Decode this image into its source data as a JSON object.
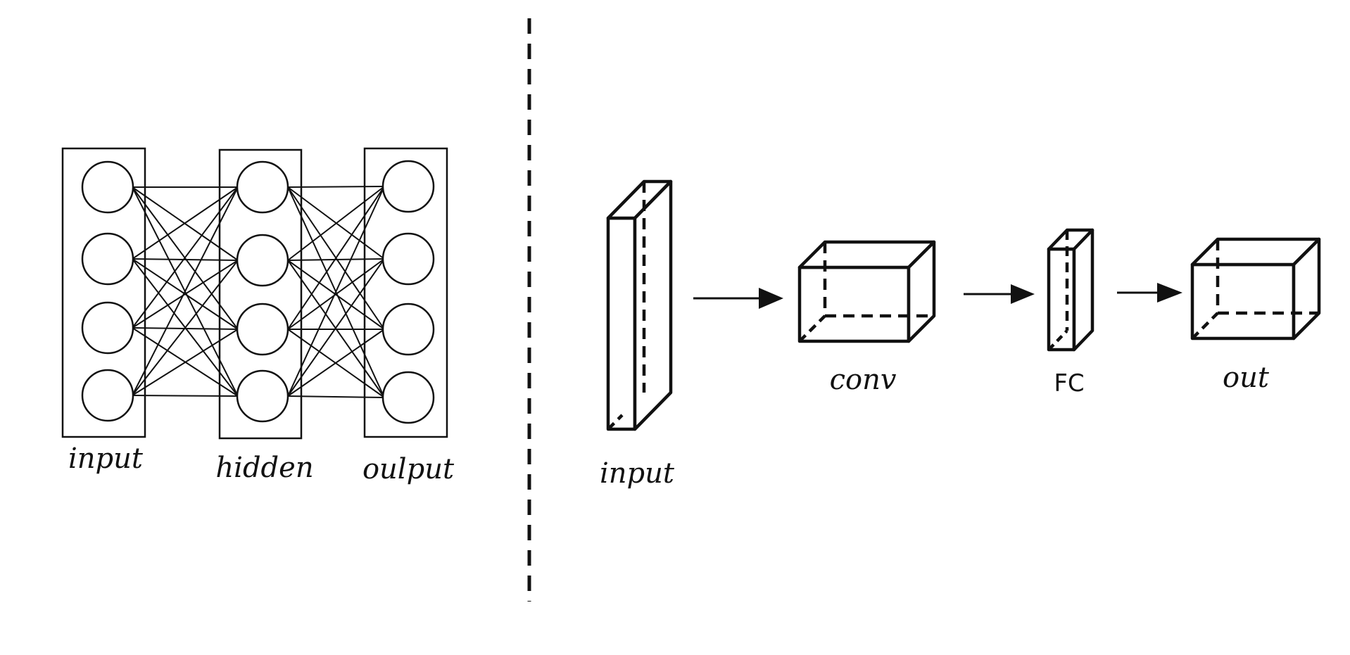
{
  "left_panel": {
    "layers": [
      {
        "label": "input",
        "nodes": 4
      },
      {
        "label": "hidden",
        "nodes": 4
      },
      {
        "label": "oulput",
        "nodes": 4
      }
    ]
  },
  "right_panel": {
    "blocks": [
      {
        "label": "input"
      },
      {
        "label": "conv"
      },
      {
        "label": "FC"
      },
      {
        "label": "out"
      }
    ]
  },
  "colors": {
    "stroke": "#111111",
    "background": "#ffffff"
  }
}
